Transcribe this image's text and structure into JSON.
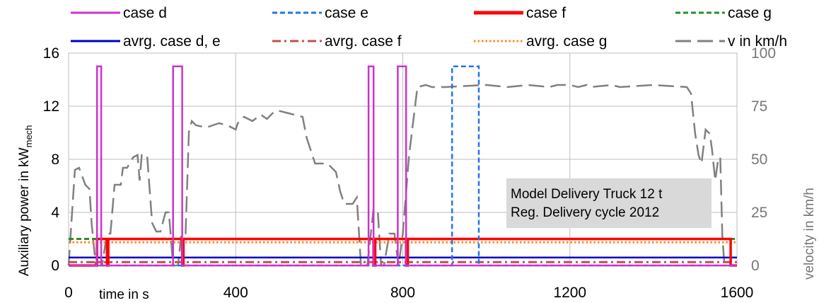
{
  "chart_data": {
    "type": "line",
    "xlabel": "time in s",
    "ylabel": "Auxiliary power in kW",
    "ylabel_sub": "mech",
    "y2label": "velocity in km/h",
    "xlim": [
      0,
      1600
    ],
    "ylim": [
      0,
      16
    ],
    "y2lim": [
      0,
      100
    ],
    "xticks": [
      "0",
      "400",
      "800",
      "1200",
      "1600"
    ],
    "yticks": [
      "0",
      "4",
      "8",
      "12",
      "16"
    ],
    "y2ticks": [
      "0",
      "25",
      "50",
      "75",
      "100"
    ],
    "grid": true,
    "legend_position": "top",
    "annotation": [
      "Model Delivery Truck 12 t",
      "Reg. Delivery cycle 2012"
    ],
    "series": [
      {
        "name": "case d",
        "color": "#cc33cc",
        "dash": "solid",
        "axis": "left",
        "x": [
          0,
          68,
          68,
          78,
          78,
          250,
          250,
          272,
          272,
          718,
          718,
          730,
          730,
          788,
          788,
          808,
          808,
          1600
        ],
        "y": [
          0,
          0,
          15,
          15,
          0,
          0,
          15,
          15,
          0,
          0,
          15,
          15,
          0,
          0,
          15,
          15,
          0,
          0
        ]
      },
      {
        "name": "case e",
        "color": "#1f77e8",
        "dash": "dashed",
        "axis": "left",
        "x": [
          0,
          918,
          918,
          982,
          982,
          1600
        ],
        "y": [
          0,
          0,
          15,
          15,
          0,
          0
        ]
      },
      {
        "name": "case f",
        "color": "#ff0000",
        "dash": "solid",
        "axis": "left",
        "x": [
          0,
          68,
          68,
          92,
          92,
          95,
          95,
          250,
          250,
          272,
          272,
          275,
          275,
          718,
          718,
          730,
          730,
          734,
          734,
          788,
          788,
          808,
          808,
          812,
          812,
          1585,
          1585,
          1600
        ],
        "y": [
          0,
          0,
          2,
          2,
          0,
          0,
          2,
          2,
          2,
          2,
          0,
          0,
          2,
          2,
          2,
          2,
          0,
          0,
          2,
          2,
          2,
          2,
          0,
          0,
          2,
          2,
          0,
          0
        ]
      },
      {
        "name": "case g",
        "color": "#2e8b2e",
        "dash": "dashed",
        "axis": "left",
        "x": [
          0,
          1600
        ],
        "y": [
          2,
          2
        ]
      },
      {
        "name": "avrg. case d, e",
        "color": "#0000cc",
        "dash": "solid",
        "axis": "left",
        "x": [
          0,
          1600
        ],
        "y": [
          0.6,
          0.6
        ]
      },
      {
        "name": "avrg. case f",
        "color": "#c0504d",
        "dash": "dashdot",
        "axis": "left",
        "x": [
          0,
          1600
        ],
        "y": [
          0.25,
          0.25
        ]
      },
      {
        "name": "avrg. case g",
        "color": "#ff8c1a",
        "dash": "dotted",
        "axis": "left",
        "x": [
          0,
          1600
        ],
        "y": [
          1.75,
          1.75
        ]
      },
      {
        "name": "v in km/h",
        "color": "#808080",
        "dash": "longdash",
        "axis": "right",
        "x": [
          0,
          15,
          25,
          40,
          50,
          55,
          65,
          72,
          80,
          92,
          100,
          110,
          125,
          130,
          140,
          155,
          165,
          170,
          175,
          188,
          200,
          210,
          220,
          232,
          240,
          250,
          262,
          270,
          280,
          288,
          295,
          305,
          330,
          360,
          380,
          400,
          405,
          420,
          440,
          460,
          475,
          490,
          500,
          520,
          540,
          560,
          570,
          590,
          600,
          620,
          640,
          650,
          660,
          680,
          690,
          700,
          715,
          722,
          730,
          740,
          748,
          755,
          768,
          780,
          790,
          800,
          815,
          835,
          855,
          870,
          900,
          1000,
          1050,
          1100,
          1150,
          1170,
          1200,
          1220,
          1240,
          1250,
          1300,
          1320,
          1400,
          1480,
          1490,
          1500,
          1508,
          1515,
          1520,
          1525,
          1535,
          1540,
          1548,
          1555,
          1560,
          1565,
          1570
        ],
        "y": [
          0,
          45,
          46,
          38,
          36,
          20,
          0,
          0,
          0,
          15,
          15,
          38,
          38,
          46,
          46,
          51,
          52,
          40,
          52,
          52,
          20,
          16,
          16,
          25,
          25,
          0,
          0,
          15,
          15,
          63,
          68,
          66,
          65,
          67,
          66,
          64,
          67,
          70,
          68,
          71,
          69,
          72,
          73,
          72,
          71,
          70,
          60,
          48,
          48,
          48,
          44,
          35,
          29,
          29,
          32,
          0,
          0,
          12,
          27,
          26,
          0,
          0,
          15,
          15,
          0,
          15,
          52,
          84,
          85,
          84,
          84,
          85,
          84,
          85,
          84,
          85,
          85,
          84,
          85,
          84,
          85,
          84,
          85,
          84,
          81,
          62,
          52,
          48,
          56,
          64,
          62,
          55,
          40,
          50,
          51,
          14,
          0
        ]
      }
    ]
  }
}
